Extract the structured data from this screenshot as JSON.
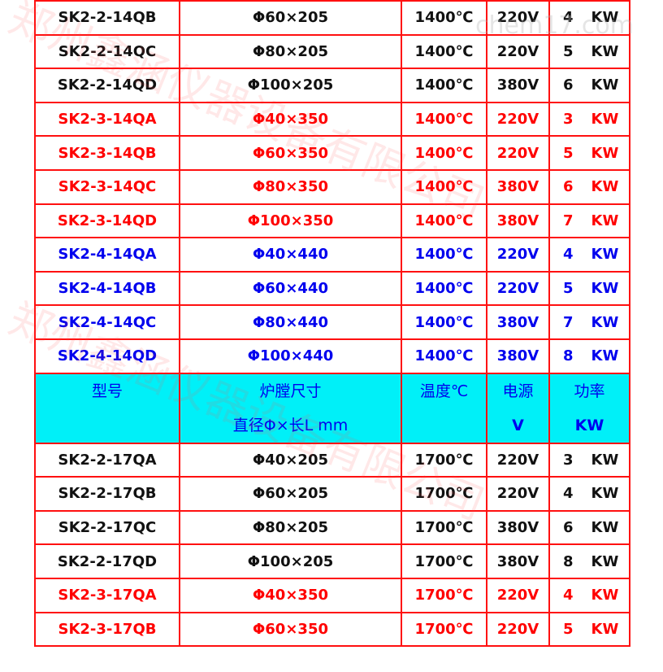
{
  "watermark": {
    "cn": "郑州鑫涵仪器设备有限公司",
    "en": "chem17.com"
  },
  "header": {
    "model": "型号",
    "chamber_1": "炉膛尺寸",
    "chamber_2": "直径Φ×长L mm",
    "temp": "温度℃",
    "power_1": "电源",
    "power_2": "V",
    "rating_1": "功率",
    "rating_2": "KW"
  },
  "colors": {
    "border": "#ff1010",
    "header_bg": "#00f0f8",
    "red": "#ff0000",
    "blue": "#0000ee",
    "black": "#111111"
  },
  "rows_top": [
    {
      "model": "SK2-2-14QB",
      "size": "Φ60×205",
      "temp": "1400℃",
      "volt": "220V",
      "kw": "4",
      "unit": "KW",
      "color": "black"
    },
    {
      "model": "SK2-2-14QC",
      "size": "Φ80×205",
      "temp": "1400℃",
      "volt": "220V",
      "kw": "5",
      "unit": "KW",
      "color": "black"
    },
    {
      "model": "SK2-2-14QD",
      "size": "Φ100×205",
      "temp": "1400℃",
      "volt": "380V",
      "kw": "6",
      "unit": "KW",
      "color": "black"
    },
    {
      "model": "SK2-3-14QA",
      "size": "Φ40×350",
      "temp": "1400℃",
      "volt": "220V",
      "kw": "3",
      "unit": "KW",
      "color": "red"
    },
    {
      "model": "SK2-3-14QB",
      "size": "Φ60×350",
      "temp": "1400℃",
      "volt": "220V",
      "kw": "5",
      "unit": "KW",
      "color": "red"
    },
    {
      "model": "SK2-3-14QC",
      "size": "Φ80×350",
      "temp": "1400℃",
      "volt": "380V",
      "kw": "6",
      "unit": "KW",
      "color": "red"
    },
    {
      "model": "SK2-3-14QD",
      "size": "Φ100×350",
      "temp": "1400℃",
      "volt": "380V",
      "kw": "7",
      "unit": "KW",
      "color": "red"
    },
    {
      "model": "SK2-4-14QA",
      "size": "Φ40×440",
      "temp": "1400℃",
      "volt": "220V",
      "kw": "4",
      "unit": "KW",
      "color": "blue"
    },
    {
      "model": "SK2-4-14QB",
      "size": "Φ60×440",
      "temp": "1400℃",
      "volt": "220V",
      "kw": "5",
      "unit": "KW",
      "color": "blue"
    },
    {
      "model": "SK2-4-14QC",
      "size": "Φ80×440",
      "temp": "1400℃",
      "volt": "380V",
      "kw": "7",
      "unit": "KW",
      "color": "blue"
    },
    {
      "model": "SK2-4-14QD",
      "size": "Φ100×440",
      "temp": "1400℃",
      "volt": "380V",
      "kw": "8",
      "unit": "KW",
      "color": "blue"
    }
  ],
  "rows_bottom": [
    {
      "model": "SK2-2-17QA",
      "size": "Φ40×205",
      "temp": "1700℃",
      "volt": "220V",
      "kw": "3",
      "unit": "KW",
      "color": "black"
    },
    {
      "model": "SK2-2-17QB",
      "size": "Φ60×205",
      "temp": "1700℃",
      "volt": "220V",
      "kw": "4",
      "unit": "KW",
      "color": "black"
    },
    {
      "model": "SK2-2-17QC",
      "size": "Φ80×205",
      "temp": "1700℃",
      "volt": "380V",
      "kw": "6",
      "unit": "KW",
      "color": "black"
    },
    {
      "model": "SK2-2-17QD",
      "size": "Φ100×205",
      "temp": "1700℃",
      "volt": "380V",
      "kw": "8",
      "unit": "KW",
      "color": "black"
    },
    {
      "model": "SK2-3-17QA",
      "size": "Φ40×350",
      "temp": "1700℃",
      "volt": "220V",
      "kw": "4",
      "unit": "KW",
      "color": "red"
    },
    {
      "model": "SK2-3-17QB",
      "size": "Φ60×350",
      "temp": "1700℃",
      "volt": "220V",
      "kw": "5",
      "unit": "KW",
      "color": "red"
    }
  ]
}
